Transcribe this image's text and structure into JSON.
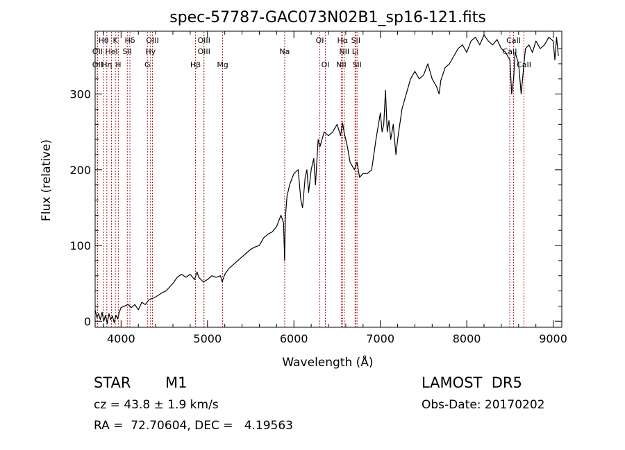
{
  "chart_data": {
    "type": "line",
    "title": "spec-57787-GAC073N02B1_sp16-121.fits",
    "xlabel": "Wavelength (Å)",
    "ylabel": "Flux (relative)",
    "xlim": [
      3700,
      9100
    ],
    "ylim": [
      -8,
      383
    ],
    "x_ticks": [
      4000,
      5000,
      6000,
      7000,
      8000,
      9000
    ],
    "y_ticks": [
      0,
      100,
      200,
      300
    ],
    "grid": false,
    "line_color": "#000000",
    "marker_color": "#b22222",
    "series": [
      {
        "x": [
          3700,
          3720,
          3740,
          3760,
          3780,
          3800,
          3820,
          3840,
          3860,
          3880,
          3900,
          3920,
          3940,
          3960,
          3980,
          4000,
          4040,
          4080,
          4120,
          4160,
          4200,
          4240,
          4280,
          4320,
          4360,
          4400,
          4440,
          4480,
          4520,
          4560,
          4600,
          4650,
          4700,
          4750,
          4800,
          4850,
          4880,
          4900,
          4950,
          5000,
          5050,
          5100,
          5150,
          5170,
          5200,
          5250,
          5300,
          5350,
          5400,
          5450,
          5500,
          5550,
          5600,
          5650,
          5700,
          5750,
          5800,
          5850,
          5880,
          5893,
          5900,
          5920,
          5950,
          6000,
          6050,
          6080,
          6100,
          6130,
          6150,
          6170,
          6200,
          6230,
          6250,
          6280,
          6300,
          6350,
          6400,
          6450,
          6500,
          6540,
          6563,
          6580,
          6600,
          6620,
          6650,
          6700,
          6730,
          6760,
          6800,
          6850,
          6900,
          6950,
          7000,
          7020,
          7040,
          7060,
          7080,
          7100,
          7120,
          7150,
          7180,
          7200,
          7250,
          7300,
          7350,
          7400,
          7450,
          7500,
          7550,
          7600,
          7650,
          7680,
          7700,
          7750,
          7800,
          7850,
          7900,
          7950,
          8000,
          8050,
          8100,
          8150,
          8200,
          8250,
          8300,
          8350,
          8400,
          8450,
          8500,
          8520,
          8542,
          8560,
          8600,
          8630,
          8662,
          8680,
          8720,
          8760,
          8800,
          8850,
          8900,
          8950,
          9000,
          9020,
          9040,
          9060
        ],
        "y": [
          15,
          5,
          10,
          2,
          12,
          0,
          8,
          -3,
          10,
          2,
          7,
          -2,
          8,
          3,
          12,
          18,
          20,
          22,
          18,
          22,
          15,
          25,
          22,
          28,
          30,
          32,
          35,
          38,
          40,
          45,
          50,
          58,
          62,
          58,
          62,
          55,
          65,
          58,
          52,
          55,
          60,
          58,
          60,
          52,
          62,
          70,
          75,
          80,
          85,
          90,
          95,
          98,
          100,
          110,
          115,
          118,
          125,
          140,
          130,
          80,
          135,
          165,
          180,
          195,
          200,
          160,
          150,
          190,
          200,
          170,
          200,
          215,
          180,
          240,
          230,
          250,
          245,
          250,
          260,
          245,
          262,
          250,
          240,
          230,
          210,
          200,
          210,
          190,
          195,
          195,
          200,
          240,
          275,
          250,
          260,
          305,
          250,
          265,
          240,
          260,
          220,
          240,
          280,
          300,
          320,
          330,
          320,
          325,
          340,
          320,
          310,
          300,
          318,
          335,
          340,
          350,
          360,
          365,
          355,
          370,
          375,
          365,
          378,
          370,
          365,
          372,
          360,
          355,
          345,
          300,
          320,
          355,
          340,
          300,
          340,
          360,
          365,
          355,
          370,
          360,
          365,
          375,
          370,
          345,
          375,
          350
        ]
      }
    ],
    "lines": [
      {
        "label": "Hθ",
        "wavelength": 3797,
        "row": 1
      },
      {
        "label": "OII",
        "wavelength": 3727,
        "row": 2
      },
      {
        "label": "OII",
        "wavelength": 3727,
        "row": 3
      },
      {
        "label": "HeI",
        "wavelength": 3889,
        "row": 2
      },
      {
        "label": "Hη",
        "wavelength": 3835,
        "row": 3
      },
      {
        "label": "K",
        "wavelength": 3934,
        "row": 1
      },
      {
        "label": "H",
        "wavelength": 3968,
        "row": 3
      },
      {
        "label": "SII",
        "wavelength": 4072,
        "row": 2
      },
      {
        "label": "Hδ",
        "wavelength": 4102,
        "row": 1
      },
      {
        "label": "OIII",
        "wavelength": 4363,
        "row": 1
      },
      {
        "label": "Hγ",
        "wavelength": 4341,
        "row": 2
      },
      {
        "label": "G",
        "wavelength": 4305,
        "row": 3
      },
      {
        "label": "OIII",
        "wavelength": 4959,
        "row": 1
      },
      {
        "label": "OIII",
        "wavelength": 4959,
        "row": 2
      },
      {
        "label": "Hβ",
        "wavelength": 4861,
        "row": 3
      },
      {
        "label": "Mg",
        "wavelength": 5175,
        "row": 3
      },
      {
        "label": "Na",
        "wavelength": 5893,
        "row": 2
      },
      {
        "label": "OI",
        "wavelength": 6300,
        "row": 1
      },
      {
        "label": "OI",
        "wavelength": 6364,
        "row": 3
      },
      {
        "label": "Hα",
        "wavelength": 6563,
        "row": 1
      },
      {
        "label": "NII",
        "wavelength": 6583,
        "row": 2
      },
      {
        "label": "NII",
        "wavelength": 6548,
        "row": 3
      },
      {
        "label": "SII",
        "wavelength": 6716,
        "row": 1
      },
      {
        "label": "Li",
        "wavelength": 6708,
        "row": 2
      },
      {
        "label": "SII",
        "wavelength": 6731,
        "row": 3
      },
      {
        "label": "CaII",
        "wavelength": 8542,
        "row": 1
      },
      {
        "label": "CaII",
        "wavelength": 8498,
        "row": 2
      },
      {
        "label": "CaII",
        "wavelength": 8662,
        "row": 3
      }
    ]
  },
  "info": {
    "class": "STAR",
    "subclass": "M1",
    "survey": "LAMOST  DR5",
    "cz": "cz = 43.8 ± 1.9 km/s",
    "obs_date": "Obs-Date: 20170202",
    "coords": "RA =  72.70604, DEC =   4.19563"
  }
}
